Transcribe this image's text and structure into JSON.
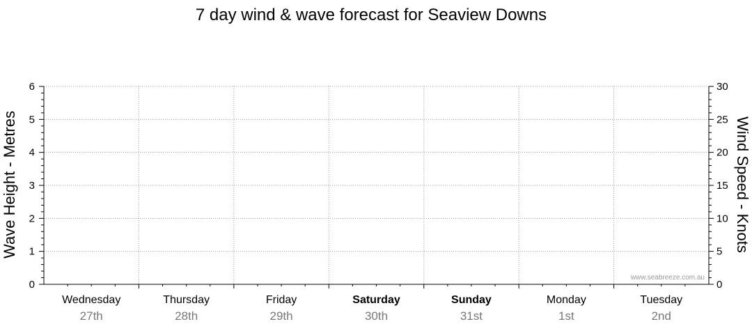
{
  "chart_data": {
    "type": "line",
    "title": "7 day wind & wave forecast for Seaview Downs",
    "ylabel_left": "Wave Height - Metres",
    "ylabel_right": "Wind Speed - Knots",
    "ylim_left": [
      0,
      6
    ],
    "ylim_right": [
      0,
      30
    ],
    "yticks_left": [
      0,
      1,
      2,
      3,
      4,
      5,
      6
    ],
    "yticks_right": [
      0,
      5,
      10,
      15,
      20,
      25,
      30
    ],
    "grid": true,
    "days": [
      {
        "name": "Wednesday",
        "date": "27th",
        "bold": false
      },
      {
        "name": "Thursday",
        "date": "28th",
        "bold": false
      },
      {
        "name": "Friday",
        "date": "29th",
        "bold": false
      },
      {
        "name": "Saturday",
        "date": "30th",
        "bold": true
      },
      {
        "name": "Sunday",
        "date": "31st",
        "bold": true
      },
      {
        "name": "Monday",
        "date": "1st",
        "bold": false
      },
      {
        "name": "Tuesday",
        "date": "2nd",
        "bold": false
      }
    ],
    "series": []
  },
  "watermark": "www.seabreeze.com.au"
}
